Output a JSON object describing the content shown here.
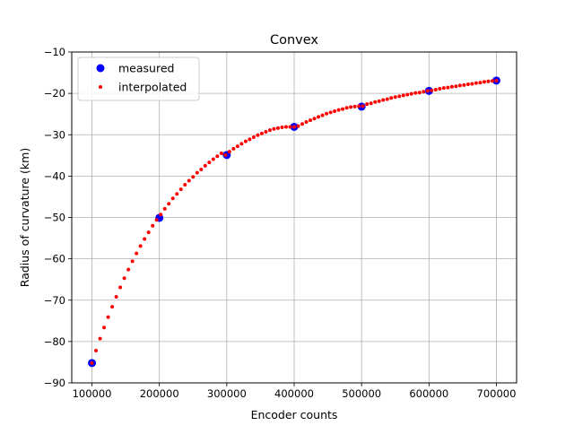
{
  "chart_data": {
    "type": "scatter",
    "title": "Convex",
    "xlabel": "Encoder counts",
    "ylabel": "Radius of curvature (km)",
    "xlim": [
      70000,
      730000
    ],
    "ylim": [
      -90,
      -10
    ],
    "grid": true,
    "legend_placement": "top-left",
    "x_ticks": [
      100000,
      200000,
      300000,
      400000,
      500000,
      600000,
      700000
    ],
    "y_ticks": [
      -90,
      -80,
      -70,
      -60,
      -50,
      -40,
      -30,
      -20,
      -10
    ],
    "x_tick_labels": [
      "100000",
      "200000",
      "300000",
      "400000",
      "500000",
      "600000",
      "700000"
    ],
    "y_tick_labels": [
      "−90",
      "−80",
      "−70",
      "−60",
      "−50",
      "−40",
      "−30",
      "−20",
      "−10"
    ],
    "series": [
      {
        "name": "measured",
        "color": "#0000ff",
        "marker": "circle-large",
        "x": [
          100000,
          200000,
          300000,
          400000,
          500000,
          600000,
          700000
        ],
        "y": [
          -85.2,
          -50.1,
          -34.9,
          -28.1,
          -23.2,
          -19.4,
          -16.9
        ]
      },
      {
        "name": "interpolated",
        "color": "#ff0000",
        "marker": "circle-small",
        "x": [
          100000,
          106000,
          112000,
          118000,
          124000,
          130000,
          136000,
          142000,
          148000,
          154000,
          160000,
          166000,
          172000,
          178000,
          184000,
          190000,
          196000,
          202000,
          208000,
          214000,
          220000,
          226000,
          232000,
          238000,
          244000,
          250000,
          256000,
          262000,
          268000,
          274000,
          280000,
          286000,
          292000,
          298000,
          304000,
          310000,
          316000,
          322000,
          328000,
          334000,
          340000,
          346000,
          352000,
          358000,
          364000,
          370000,
          376000,
          382000,
          388000,
          394000,
          400000,
          406000,
          412000,
          418000,
          424000,
          430000,
          436000,
          442000,
          448000,
          454000,
          460000,
          466000,
          472000,
          478000,
          484000,
          490000,
          496000,
          502000,
          508000,
          514000,
          520000,
          526000,
          532000,
          538000,
          544000,
          550000,
          556000,
          562000,
          568000,
          574000,
          580000,
          586000,
          592000,
          598000,
          604000,
          610000,
          616000,
          622000,
          628000,
          634000,
          640000,
          646000,
          652000,
          658000,
          664000,
          670000,
          676000,
          682000,
          688000,
          694000,
          700000
        ],
        "y": [
          -85.2,
          -82.2,
          -79.3,
          -76.6,
          -74.1,
          -71.6,
          -69.2,
          -66.9,
          -64.7,
          -62.6,
          -60.6,
          -58.7,
          -56.9,
          -55.2,
          -53.6,
          -52.0,
          -50.6,
          -49.3,
          -47.9,
          -46.7,
          -45.4,
          -44.3,
          -43.2,
          -42.1,
          -41.1,
          -40.2,
          -39.2,
          -38.4,
          -37.5,
          -36.7,
          -35.9,
          -35.2,
          -34.5,
          -34.9,
          -34.1,
          -33.4,
          -32.8,
          -32.2,
          -31.6,
          -31.1,
          -30.6,
          -30.1,
          -29.7,
          -29.3,
          -28.9,
          -28.6,
          -28.4,
          -28.2,
          -28.1,
          -28.1,
          -28.1,
          -27.9,
          -27.4,
          -26.9,
          -26.5,
          -26.1,
          -25.7,
          -25.3,
          -24.9,
          -24.6,
          -24.3,
          -24.0,
          -23.8,
          -23.5,
          -23.3,
          -23.2,
          -23.1,
          -23.1,
          -22.6,
          -22.4,
          -22.1,
          -21.9,
          -21.6,
          -21.4,
          -21.1,
          -20.9,
          -20.7,
          -20.5,
          -20.3,
          -20.1,
          -19.9,
          -19.8,
          -19.6,
          -19.4,
          -19.3,
          -19.1,
          -18.9,
          -18.7,
          -18.6,
          -18.4,
          -18.3,
          -18.1,
          -18.0,
          -17.8,
          -17.7,
          -17.5,
          -17.4,
          -17.2,
          -17.1,
          -17.0,
          -16.9
        ]
      }
    ]
  }
}
